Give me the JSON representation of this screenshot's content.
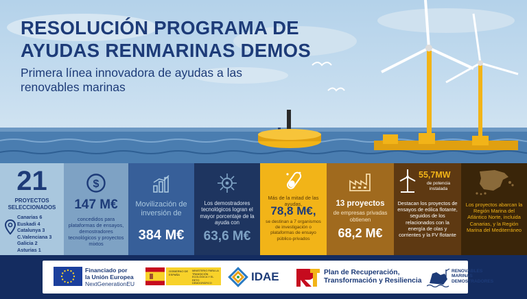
{
  "hero": {
    "title_line1": "RESOLUCIÓN PROGRAMA DE",
    "title_line2": "AYUDAS RENMARINAS DEMOS",
    "subtitle": "Primera línea innovadora de ayudas a las renovables marinas"
  },
  "panels": {
    "projects": {
      "count": "21",
      "label": "PROYECTOS SELECCIONADOS",
      "regions": [
        "Canarias 6",
        "Euskadi 4",
        "Catalunya 3",
        "C.Valenciana 3",
        "Galicia 2",
        "Asturias 1"
      ],
      "icon": "location-pin-icon"
    },
    "platforms": {
      "value": "147 M€",
      "text": "concedidos para plataformas de ensayos, demostradores tecnológicos y proyectos mixtos",
      "icon": "dollar-coin-icon"
    },
    "investment": {
      "text": "Movilización de inversión de",
      "value": "384 M€",
      "icon": "bar-chart-icon"
    },
    "demonstrators": {
      "text": "Los demostradores tecnológicos logran el mayor porcentaje de la ayuda con",
      "value": "63,6 M€",
      "icon": "circuit-gear-icon"
    },
    "research": {
      "text_top": "Más de la mitad de las ayudas,",
      "value": "78,8 M€,",
      "text_bottom": "se destinan a 7 organismos de investigación o plataformas de ensayo público-privados",
      "icon": "test-tube-icon"
    },
    "companies": {
      "title": "13 proyectos",
      "text": "de empresas privadas obtienen",
      "value": "68,2 M€",
      "icon": "factory-icon"
    },
    "wind": {
      "value": "55,7MW",
      "value_caption": "de potencia instalada",
      "text": "Destacan los proyectos de ensayos de eólica flotante, seguidos de los relacionados con la energía de olas y corrientes y la FV flotante",
      "icon": "wind-turbine-icon"
    },
    "regions": {
      "text": "Los proyectos abarcan la Región Marina del Atlántico Norte, incluida Canarias, y la Región Marina del Mediterráneo",
      "icon": "spain-map-icon"
    }
  },
  "footer": {
    "eu_line1": "Financiado por",
    "eu_line2": "la Unión Europea",
    "eu_line3": "NextGenerationEU",
    "gov_text": "GOBIERNO DE ESPAÑA",
    "ministry_text": "MINISTERIO PARA LA TRANSICIÓN ECOLÓGICA Y EL RETO DEMOGRÁFICO",
    "idae": "IDAE",
    "plan_line1": "Plan de Recuperación,",
    "plan_line2": "Transformación y Resiliencia",
    "rm_line1": "RENOVABLES",
    "rm_line2": "MARINAS",
    "rm_line3": "DEMOSTRADORES"
  },
  "colors": {
    "navy": "#1d3b78",
    "yellow": "#f2b418",
    "footer_bg": "#142c60"
  }
}
